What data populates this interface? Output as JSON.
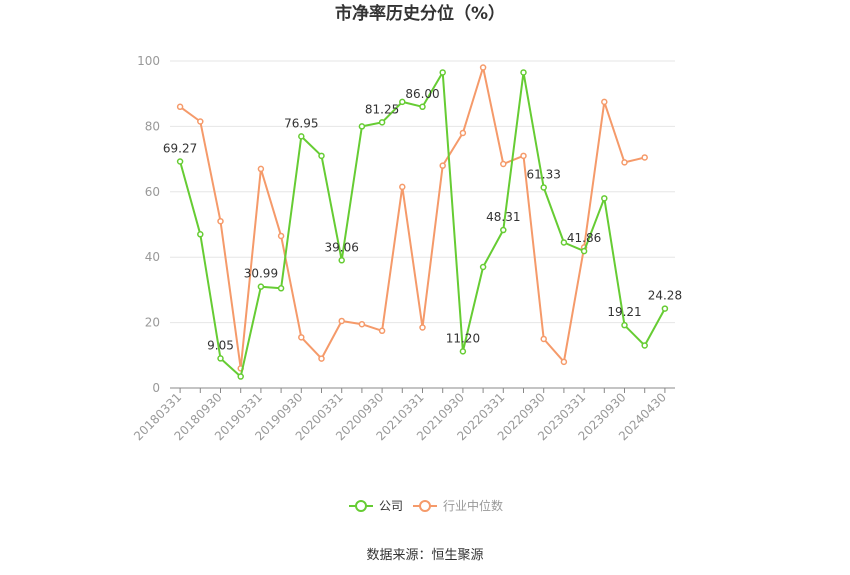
{
  "chart_data": {
    "type": "line",
    "title": "市净率历史分位（%）",
    "xlabel": "",
    "ylabel": "",
    "ylim": [
      0,
      100
    ],
    "yticks": [
      0,
      20,
      40,
      60,
      80,
      100
    ],
    "grid": true,
    "legend_position": "bottom",
    "x": [
      "20180331",
      "20180630",
      "20180930",
      "20181231",
      "20190331",
      "20190630",
      "20190930",
      "20191231",
      "20200331",
      "20200630",
      "20200930",
      "20201231",
      "20210331",
      "20210630",
      "20210930",
      "20211231",
      "20220331",
      "20220630",
      "20220930",
      "20221231",
      "20230331",
      "20230630",
      "20230930",
      "20231231",
      "20240430"
    ],
    "xtick_labels": [
      "20180331",
      "20180930",
      "20190331",
      "20190930",
      "20200331",
      "20200930",
      "20210331",
      "20210930",
      "20220331",
      "20220930",
      "20230331",
      "20230930",
      "20240430"
    ],
    "series": [
      {
        "name": "公司",
        "color": "#66cc33",
        "values": [
          69.27,
          47.0,
          9.05,
          3.5,
          30.99,
          30.5,
          76.95,
          71.0,
          39.06,
          80.0,
          81.25,
          87.5,
          86.0,
          96.5,
          11.2,
          37.0,
          48.31,
          96.5,
          61.33,
          44.5,
          41.86,
          58.0,
          19.21,
          13.0,
          24.28
        ],
        "labels": {
          "0": "69.27",
          "2": "9.05",
          "4": "30.99",
          "6": "76.95",
          "8": "39.06",
          "10": "81.25",
          "12": "86.00",
          "14": "11.20",
          "16": "48.31",
          "18": "61.33",
          "20": "41.86",
          "22": "19.21",
          "24": "24.28"
        }
      },
      {
        "name": "行业中位数",
        "color": "#f59a6a",
        "values": [
          86.0,
          81.5,
          51.0,
          6.0,
          67.0,
          46.5,
          15.5,
          9.0,
          20.5,
          19.5,
          17.5,
          61.5,
          18.5,
          68.0,
          78.0,
          98.0,
          68.5,
          71.0,
          15.0,
          8.0,
          43.0,
          87.5,
          69.0,
          70.5,
          null
        ]
      }
    ]
  },
  "source": "数据来源：恒生聚源"
}
